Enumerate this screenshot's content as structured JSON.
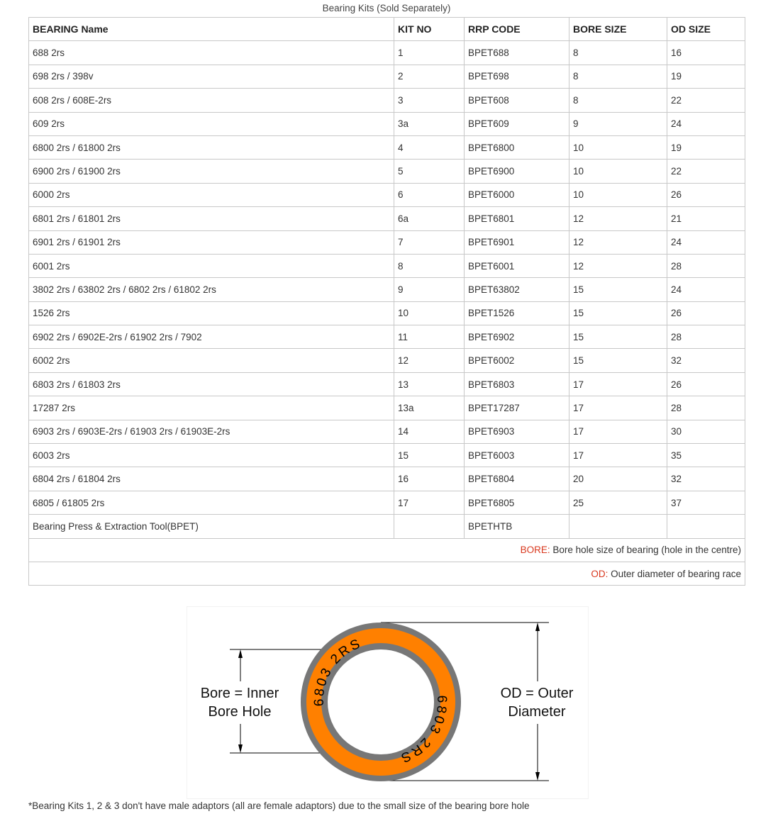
{
  "caption": "Bearing Kits (Sold Separately)",
  "headers": [
    "BEARING Name",
    "KIT NO",
    "RRP CODE",
    "BORE SIZE",
    "OD SIZE"
  ],
  "rows": [
    [
      "688 2rs",
      "1",
      "BPET688",
      "8",
      "16"
    ],
    [
      "698 2rs / 398v",
      "2",
      "BPET698",
      "8",
      "19"
    ],
    [
      "608 2rs / 608E-2rs",
      "3",
      "BPET608",
      "8",
      "22"
    ],
    [
      "609 2rs",
      "3a",
      "BPET609",
      "9",
      "24"
    ],
    [
      "6800 2rs / 61800 2rs",
      "4",
      "BPET6800",
      "10",
      "19"
    ],
    [
      "6900 2rs / 61900 2rs",
      "5",
      "BPET6900",
      "10",
      "22"
    ],
    [
      "6000 2rs",
      "6",
      "BPET6000",
      "10",
      "26"
    ],
    [
      "6801 2rs / 61801 2rs",
      "6a",
      "BPET6801",
      "12",
      "21"
    ],
    [
      "6901 2rs / 61901 2rs",
      "7",
      "BPET6901",
      "12",
      "24"
    ],
    [
      "6001 2rs",
      "8",
      "BPET6001",
      "12",
      "28"
    ],
    [
      "3802 2rs / 63802 2rs / 6802 2rs / 61802 2rs",
      "9",
      "BPET63802",
      "15",
      "24"
    ],
    [
      "1526 2rs",
      "10",
      "BPET1526",
      "15",
      "26"
    ],
    [
      "6902 2rs / 6902E-2rs / 61902 2rs / 7902",
      "11",
      "BPET6902",
      "15",
      "28"
    ],
    [
      "6002 2rs",
      "12",
      "BPET6002",
      "15",
      "32"
    ],
    [
      "6803 2rs / 61803 2rs",
      "13",
      "BPET6803",
      "17",
      "26"
    ],
    [
      "17287 2rs",
      "13a",
      "BPET17287",
      "17",
      "28"
    ],
    [
      "6903 2rs / 6903E-2rs / 61903 2rs / 61903E-2rs",
      "14",
      "BPET6903",
      "17",
      "30"
    ],
    [
      "6003 2rs",
      "15",
      "BPET6003",
      "17",
      "35"
    ],
    [
      "6804 2rs / 61804 2rs",
      "16",
      "BPET6804",
      "20",
      "32"
    ],
    [
      "6805 / 61805 2rs",
      "17",
      "BPET6805",
      "25",
      "37"
    ],
    [
      "Bearing Press & Extraction Tool(BPET)",
      "",
      "BPETHTB",
      "",
      ""
    ]
  ],
  "legend": {
    "bore_key": "BORE:",
    "bore_text": " Bore hole size of bearing (hole in the centre)",
    "od_key": "OD:",
    "od_text": " Outer diameter of bearing race"
  },
  "diagram": {
    "bore_label_1": "Bore = Inner",
    "bore_label_2": "Bore Hole",
    "od_label_1": "OD = Outer",
    "od_label_2": "Diameter",
    "ring_text_top": "6803  2RS",
    "ring_text_bottom": "6803  2RS",
    "ring_color": "#ff8000",
    "race_color": "#777777"
  },
  "footnote": "*Bearing Kits 1, 2 & 3 don't have male adaptors (all are female adaptors) due to the small size of the bearing bore hole"
}
